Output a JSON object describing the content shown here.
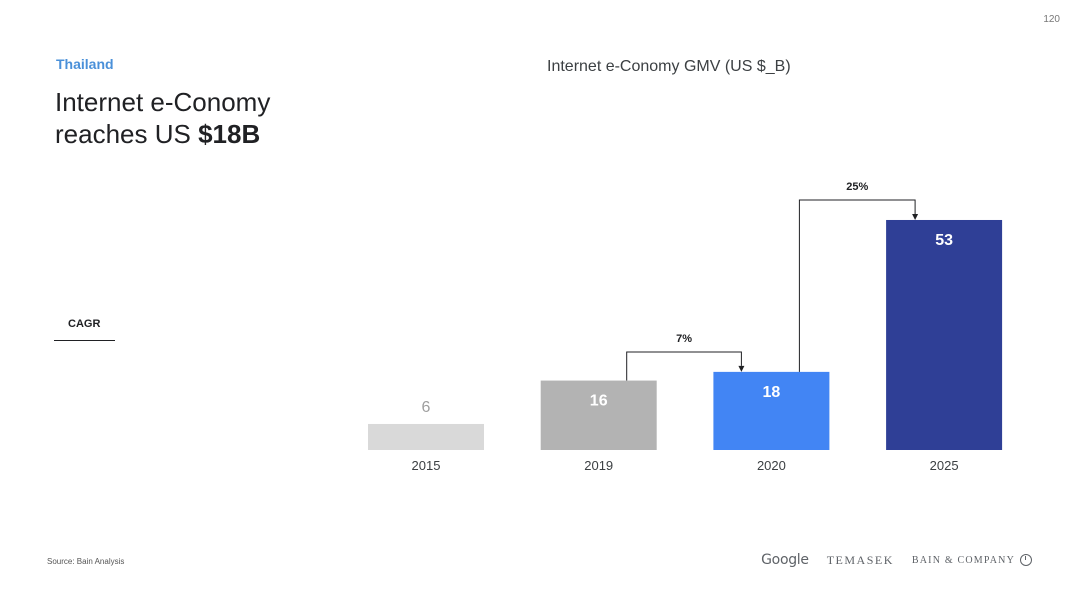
{
  "page_number": "120",
  "region": "Thailand",
  "headline": {
    "line1": "Internet e-Conomy",
    "line2_prefix": "reaches US ",
    "line2_bold": "$18B"
  },
  "cagr_label": "CAGR",
  "source": "Source: Bain Analysis",
  "logos": {
    "google": "Google",
    "temasek": "TEMASEK",
    "bain": "BAIN & COMPANY"
  },
  "colors": {
    "accent": "#4a90d9",
    "bar_2015": "#d9d9d9",
    "bar_2019": "#b3b3b3",
    "bar_2020": "#4285f4",
    "bar_2025": "#2f3f96"
  },
  "chart_data": {
    "type": "bar",
    "title": "Internet e-Conomy GMV (US $_B)",
    "categories": [
      "2015",
      "2019",
      "2020",
      "2025"
    ],
    "values": [
      6,
      16,
      18,
      53
    ],
    "value_labels": [
      "6",
      "16",
      "18",
      "53"
    ],
    "bar_colors": [
      "#d9d9d9",
      "#b3b3b3",
      "#4285f4",
      "#2f3f96"
    ],
    "label_colors": [
      "#9e9e9e",
      "#ffffff",
      "#ffffff",
      "#ffffff"
    ],
    "cagr_annotations": [
      {
        "label": "7%",
        "from": "2019",
        "to": "2020"
      },
      {
        "label": "25%",
        "from": "2020",
        "to": "2025"
      }
    ],
    "xlabel": "",
    "ylabel": ""
  }
}
